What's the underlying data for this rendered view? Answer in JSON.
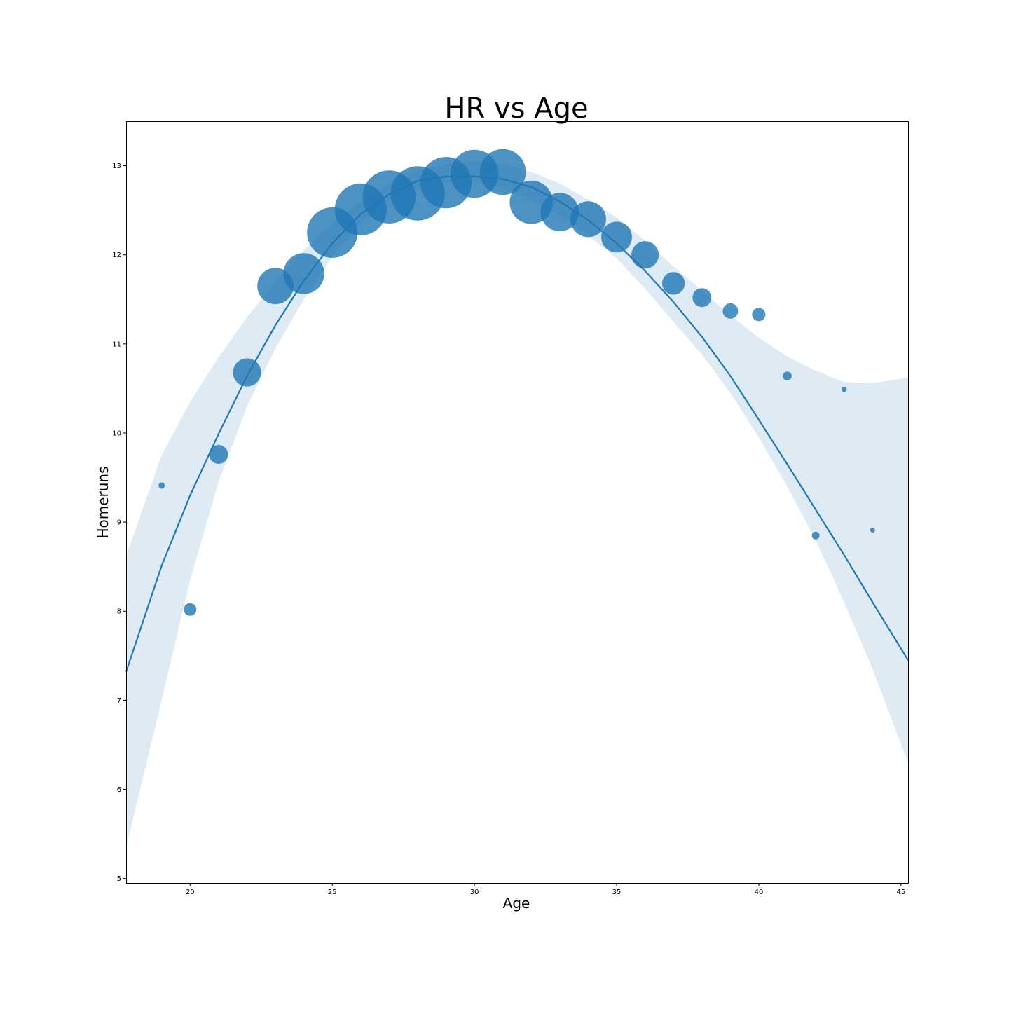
{
  "chart_data": {
    "type": "scatter",
    "title": "HR vs Age",
    "xlabel": "Age",
    "ylabel": "Homeruns",
    "xlim": [
      17.75,
      45.25
    ],
    "ylim": [
      4.95,
      13.5
    ],
    "xticks": [
      20,
      25,
      30,
      35,
      40,
      45
    ],
    "yticks": [
      5,
      6,
      7,
      8,
      9,
      10,
      11,
      12,
      13
    ],
    "grid": false,
    "legend": "none",
    "colors": {
      "points": "#1f77b4",
      "fit_line": "#1f77b4",
      "confidence_band": "#1f77b4"
    },
    "points": [
      {
        "x": 19,
        "y": 9.41,
        "weight": 1
      },
      {
        "x": 20,
        "y": 8.02,
        "weight": 4
      },
      {
        "x": 21,
        "y": 9.76,
        "weight": 9
      },
      {
        "x": 22,
        "y": 10.68,
        "weight": 20
      },
      {
        "x": 23,
        "y": 11.65,
        "weight": 33
      },
      {
        "x": 24,
        "y": 11.79,
        "weight": 42
      },
      {
        "x": 25,
        "y": 12.25,
        "weight": 64
      },
      {
        "x": 26,
        "y": 12.51,
        "weight": 68
      },
      {
        "x": 27,
        "y": 12.65,
        "weight": 71
      },
      {
        "x": 28,
        "y": 12.69,
        "weight": 74
      },
      {
        "x": 29,
        "y": 12.81,
        "weight": 66
      },
      {
        "x": 30,
        "y": 12.91,
        "weight": 58
      },
      {
        "x": 31,
        "y": 12.93,
        "weight": 53
      },
      {
        "x": 32,
        "y": 12.59,
        "weight": 47
      },
      {
        "x": 33,
        "y": 12.48,
        "weight": 37
      },
      {
        "x": 34,
        "y": 12.4,
        "weight": 32
      },
      {
        "x": 35,
        "y": 12.2,
        "weight": 24
      },
      {
        "x": 36,
        "y": 12.0,
        "weight": 19
      },
      {
        "x": 37,
        "y": 11.68,
        "weight": 13
      },
      {
        "x": 38,
        "y": 11.52,
        "weight": 9
      },
      {
        "x": 39,
        "y": 11.37,
        "weight": 6
      },
      {
        "x": 40,
        "y": 11.33,
        "weight": 4.5
      },
      {
        "x": 41,
        "y": 10.64,
        "weight": 2
      },
      {
        "x": 42,
        "y": 8.85,
        "weight": 1.5
      },
      {
        "x": 43,
        "y": 10.49,
        "weight": 0.7
      },
      {
        "x": 44,
        "y": 8.91,
        "weight": 0.6
      }
    ],
    "fit_line": {
      "x": [
        17.75,
        19,
        20,
        21,
        22,
        23,
        24,
        25,
        26,
        27,
        28,
        29,
        30,
        31,
        32,
        33,
        34,
        35,
        36,
        37,
        38,
        39,
        40,
        41,
        42,
        43,
        44,
        45.25
      ],
      "y": [
        7.32,
        8.51,
        9.3,
        9.99,
        10.64,
        11.21,
        11.71,
        12.13,
        12.46,
        12.68,
        12.83,
        12.88,
        12.88,
        12.85,
        12.76,
        12.6,
        12.39,
        12.13,
        11.82,
        11.47,
        11.08,
        10.64,
        10.15,
        9.65,
        9.14,
        8.63,
        8.1,
        7.45
      ]
    },
    "confidence_band": {
      "x": [
        17.75,
        19,
        20,
        21,
        22,
        23,
        24,
        25,
        26,
        27,
        28,
        29,
        30,
        31,
        32,
        33,
        34,
        35,
        36,
        37,
        38,
        39,
        40,
        41,
        42,
        43,
        44,
        45.25
      ],
      "lower": [
        5.35,
        7.0,
        8.35,
        9.45,
        10.3,
        10.95,
        11.5,
        11.98,
        12.35,
        12.6,
        12.75,
        12.82,
        12.82,
        12.75,
        12.62,
        12.44,
        12.22,
        11.96,
        11.62,
        11.25,
        10.88,
        10.45,
        9.95,
        9.4,
        8.8,
        8.1,
        7.35,
        6.3
      ],
      "upper": [
        8.62,
        9.75,
        10.35,
        10.85,
        11.3,
        11.7,
        12.05,
        12.35,
        12.6,
        12.8,
        12.94,
        13.02,
        13.06,
        13.02,
        12.93,
        12.8,
        12.62,
        12.42,
        12.16,
        11.87,
        11.6,
        11.32,
        11.07,
        10.86,
        10.7,
        10.57,
        10.56,
        10.62
      ]
    }
  }
}
